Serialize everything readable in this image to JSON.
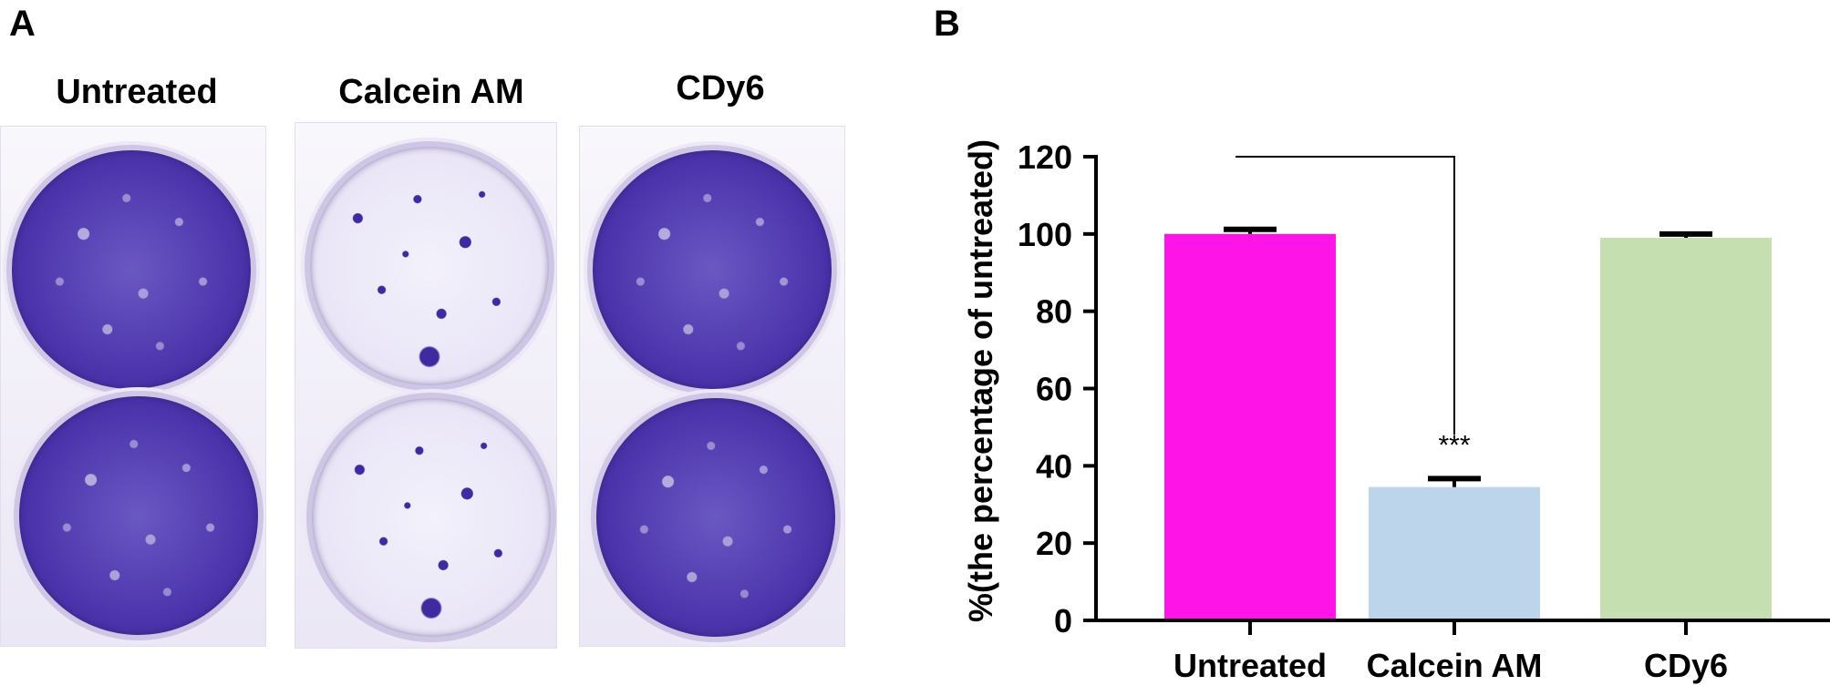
{
  "panel_a": {
    "letter": "A",
    "columns": [
      {
        "label": "Untreated"
      },
      {
        "label": "Calcein AM"
      },
      {
        "label": "CDy6"
      }
    ]
  },
  "panel_b": {
    "letter": "B"
  },
  "chart_data": {
    "type": "bar",
    "categories": [
      "Untreated",
      "Calcein AM",
      "CDy6"
    ],
    "values": [
      100,
      34.5,
      99
    ],
    "errors": [
      1.2,
      2.2,
      1.0
    ],
    "colors": [
      "#ff14e8",
      "#bdd5ea",
      "#c5dfb1"
    ],
    "xlabel": "",
    "ylabel": "%(the percentage of untreated)",
    "ylim": [
      0,
      120
    ],
    "yticks": [
      0,
      20,
      40,
      60,
      80,
      100,
      120
    ],
    "grid": false,
    "annotation": {
      "text": "***",
      "bracket_from": "Untreated",
      "bracket_to": "Calcein AM"
    }
  }
}
